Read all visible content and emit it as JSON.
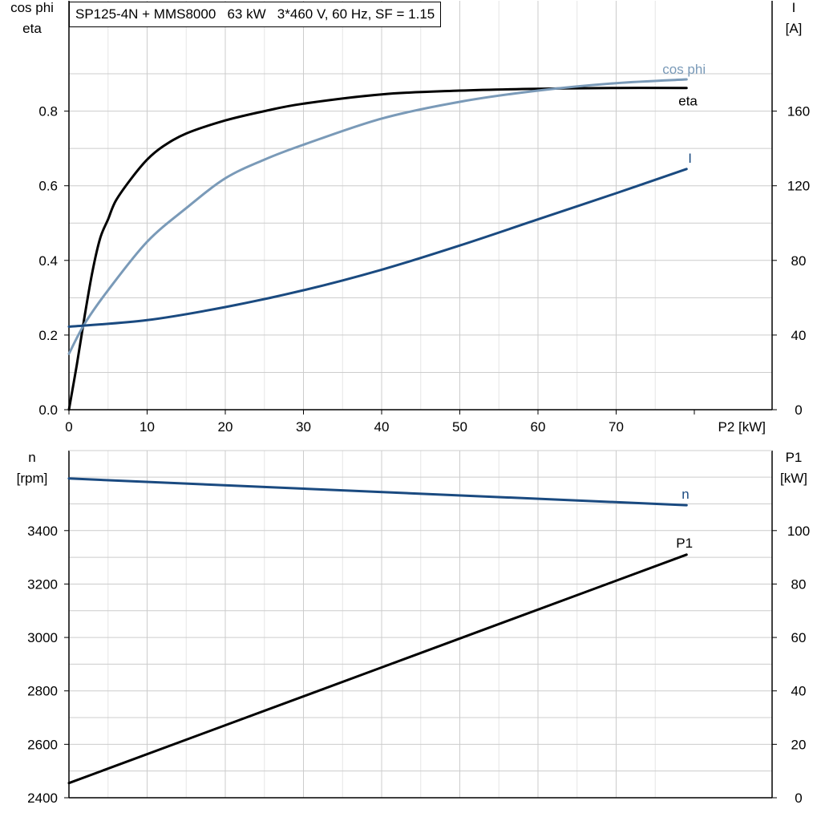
{
  "title": "SP125-4N + MMS8000   63 kW   3*460 V, 60 Hz, SF = 1.15",
  "colors": {
    "eta": "#000000",
    "cos_phi": "#7a9ab8",
    "I": "#1a4a80",
    "n": "#1a4a80",
    "P1": "#000000",
    "grid": "#cccccc"
  },
  "chart_data": [
    {
      "type": "line",
      "x_axis": {
        "label": "P2 [kW]",
        "range": [
          0,
          80
        ],
        "ticks": [
          0,
          10,
          20,
          30,
          40,
          50,
          60,
          70
        ]
      },
      "left_axis": {
        "label_line1": "cos phi",
        "label_line2": "eta",
        "range": [
          0,
          1.0
        ],
        "ticks": [
          "0.0",
          "0.2",
          "0.4",
          "0.6",
          "0.8"
        ]
      },
      "right_axis": {
        "label_line1": "I",
        "label_line2": "[A]",
        "range": [
          0,
          200
        ],
        "ticks": [
          "0",
          "40",
          "80",
          "120",
          "160"
        ]
      },
      "grid": true,
      "series": [
        {
          "name": "eta",
          "axis": "left",
          "x": [
            0,
            1,
            2,
            3,
            4,
            5,
            6,
            8,
            10,
            12,
            15,
            20,
            25,
            30,
            40,
            50,
            60,
            70,
            79
          ],
          "y": [
            0.0,
            0.12,
            0.25,
            0.37,
            0.46,
            0.51,
            0.56,
            0.62,
            0.67,
            0.705,
            0.74,
            0.775,
            0.8,
            0.82,
            0.845,
            0.855,
            0.86,
            0.862,
            0.862
          ]
        },
        {
          "name": "cos phi",
          "axis": "left",
          "x": [
            0,
            2,
            5,
            10,
            15,
            20,
            25,
            30,
            40,
            50,
            60,
            70,
            79
          ],
          "y": [
            0.15,
            0.23,
            0.32,
            0.45,
            0.54,
            0.62,
            0.67,
            0.71,
            0.78,
            0.825,
            0.855,
            0.875,
            0.885
          ]
        },
        {
          "name": "I",
          "axis": "right",
          "x": [
            0,
            10,
            20,
            30,
            40,
            50,
            60,
            70,
            79
          ],
          "y": [
            44.5,
            48,
            55,
            64,
            75,
            88,
            102,
            116,
            129
          ]
        }
      ]
    },
    {
      "type": "line",
      "left_axis": {
        "label_line1": "n",
        "label_line2": "[rpm]",
        "range": [
          2400,
          3680
        ],
        "ticks": [
          "2400",
          "2600",
          "2800",
          "3000",
          "3200",
          "3400"
        ]
      },
      "right_axis": {
        "label_line1": "P1",
        "label_line2": "[kW]",
        "range": [
          0,
          128
        ],
        "ticks": [
          "0",
          "20",
          "40",
          "60",
          "80",
          "100"
        ]
      },
      "grid": true,
      "series": [
        {
          "name": "n",
          "axis": "left",
          "x": [
            0,
            79
          ],
          "y": [
            3595,
            3495
          ]
        },
        {
          "name": "P1",
          "axis": "right",
          "x": [
            0,
            79
          ],
          "y": [
            5.5,
            91
          ]
        }
      ]
    }
  ]
}
